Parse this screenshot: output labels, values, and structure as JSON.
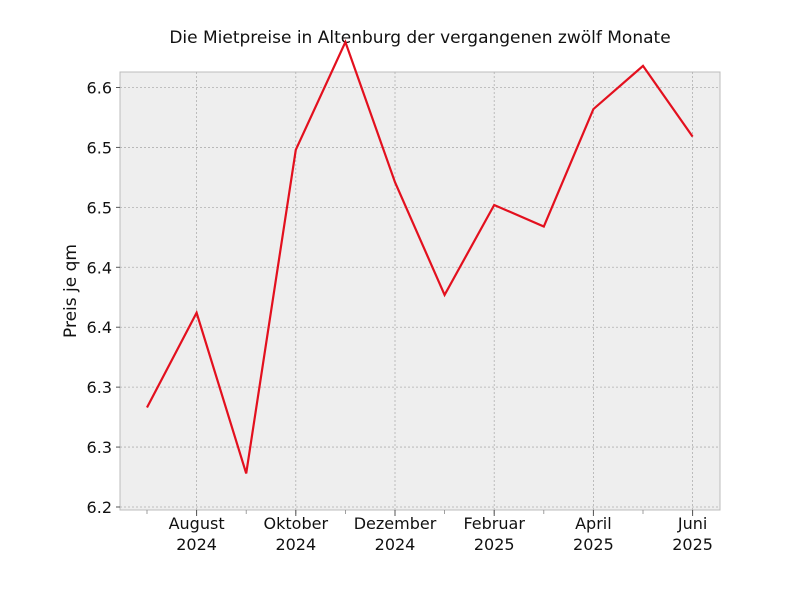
{
  "chart_data": {
    "type": "line",
    "title": "Die Mietpreise in Altenburg der vergangenen zwölf Monate",
    "xlabel": "",
    "ylabel": "Preis je qm",
    "x": [
      "2024-07",
      "2024-08",
      "2024-09",
      "2024-10",
      "2024-11",
      "2024-12",
      "2025-01",
      "2025-02",
      "2025-03",
      "2025-04",
      "2025-05",
      "2025-06"
    ],
    "x_tick_labels": [
      {
        "x": "2024-08",
        "line1": "August",
        "line2": "2024"
      },
      {
        "x": "2024-10",
        "line1": "Oktober",
        "line2": "2024"
      },
      {
        "x": "2024-12",
        "line1": "Dezember",
        "line2": "2024"
      },
      {
        "x": "2025-02",
        "line1": "Februar",
        "line2": "2025"
      },
      {
        "x": "2025-04",
        "line1": "April",
        "line2": "2025"
      },
      {
        "x": "2025-06",
        "line1": "Juni",
        "line2": "2025"
      }
    ],
    "series": [
      {
        "values": [
          6.283,
          6.362,
          6.228,
          6.498,
          6.588,
          6.471,
          6.377,
          6.452,
          6.434,
          6.532,
          6.568,
          6.509
        ],
        "color": "#e3101e"
      }
    ],
    "yticks": [
      6.2,
      6.25,
      6.3,
      6.35,
      6.4,
      6.45,
      6.5,
      6.55
    ],
    "ytick_labels": [
      "6.2",
      "6.3",
      "6.3",
      "6.4",
      "6.4",
      "6.5",
      "6.5",
      "6.6"
    ],
    "ylim": [
      6.2,
      6.56
    ],
    "grid": true,
    "legend": "none",
    "colors": {
      "plot_background": "#eeeeee",
      "grid": "#b0b0b0",
      "line": "#e3101e"
    }
  }
}
